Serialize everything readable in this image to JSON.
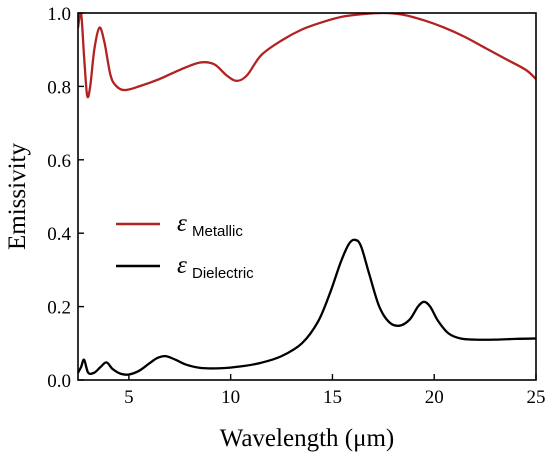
{
  "chart_data": {
    "type": "line",
    "xlabel": "Wavelength (μm)",
    "ylabel": "Emissivity",
    "xlim": [
      2.5,
      25
    ],
    "ylim": [
      0.0,
      1.0
    ],
    "xticks": [
      5,
      10,
      15,
      20,
      25
    ],
    "yticks": [
      0.0,
      0.2,
      0.4,
      0.6,
      0.8,
      1.0
    ],
    "xtick_labels": [
      "5",
      "10",
      "15",
      "20",
      "25"
    ],
    "ytick_labels": [
      "0.0",
      "0.2",
      "0.4",
      "0.6",
      "0.8",
      "1.0"
    ],
    "grid": false,
    "legend_position": "middle-left",
    "series": [
      {
        "name": "ε Metallic",
        "legend_symbol": "ε",
        "legend_subscript": "Metallic",
        "color": "#b22222",
        "x": [
          2.5,
          2.65,
          2.8,
          2.95,
          3.1,
          3.3,
          3.55,
          3.8,
          4.1,
          4.4,
          4.8,
          5.5,
          6.5,
          7.5,
          8.5,
          9.2,
          9.8,
          10.3,
          10.8,
          11.5,
          12.5,
          13.5,
          14.5,
          15.5,
          16.5,
          17.5,
          18.5,
          19.5,
          20.5,
          21.5,
          22.5,
          23.5,
          24.5,
          25
        ],
        "y": [
          0.96,
          1.0,
          0.88,
          0.775,
          0.8,
          0.9,
          0.96,
          0.92,
          0.83,
          0.8,
          0.79,
          0.8,
          0.82,
          0.845,
          0.865,
          0.86,
          0.83,
          0.815,
          0.83,
          0.885,
          0.925,
          0.955,
          0.975,
          0.99,
          0.997,
          1.0,
          0.995,
          0.98,
          0.96,
          0.935,
          0.905,
          0.875,
          0.845,
          0.82
        ]
      },
      {
        "name": "ε Dielectric",
        "legend_symbol": "ε",
        "legend_subscript": "Dielectric",
        "color": "#000000",
        "x": [
          2.5,
          2.65,
          2.8,
          3.0,
          3.3,
          3.6,
          3.9,
          4.2,
          4.6,
          5.0,
          5.5,
          6.0,
          6.4,
          6.8,
          7.3,
          7.8,
          8.5,
          9.5,
          10.5,
          11.5,
          12.5,
          13.5,
          14.3,
          14.9,
          15.4,
          15.8,
          16.1,
          16.4,
          16.8,
          17.3,
          17.8,
          18.3,
          18.8,
          19.2,
          19.5,
          19.8,
          20.2,
          20.7,
          21.3,
          22.0,
          23.0,
          24.0,
          25.0
        ],
        "y": [
          0.02,
          0.035,
          0.055,
          0.02,
          0.02,
          0.035,
          0.048,
          0.03,
          0.017,
          0.015,
          0.025,
          0.045,
          0.06,
          0.065,
          0.055,
          0.042,
          0.033,
          0.032,
          0.037,
          0.047,
          0.065,
          0.1,
          0.16,
          0.24,
          0.32,
          0.37,
          0.382,
          0.365,
          0.29,
          0.2,
          0.157,
          0.148,
          0.165,
          0.2,
          0.213,
          0.2,
          0.16,
          0.127,
          0.113,
          0.11,
          0.11,
          0.112,
          0.113
        ]
      }
    ]
  }
}
